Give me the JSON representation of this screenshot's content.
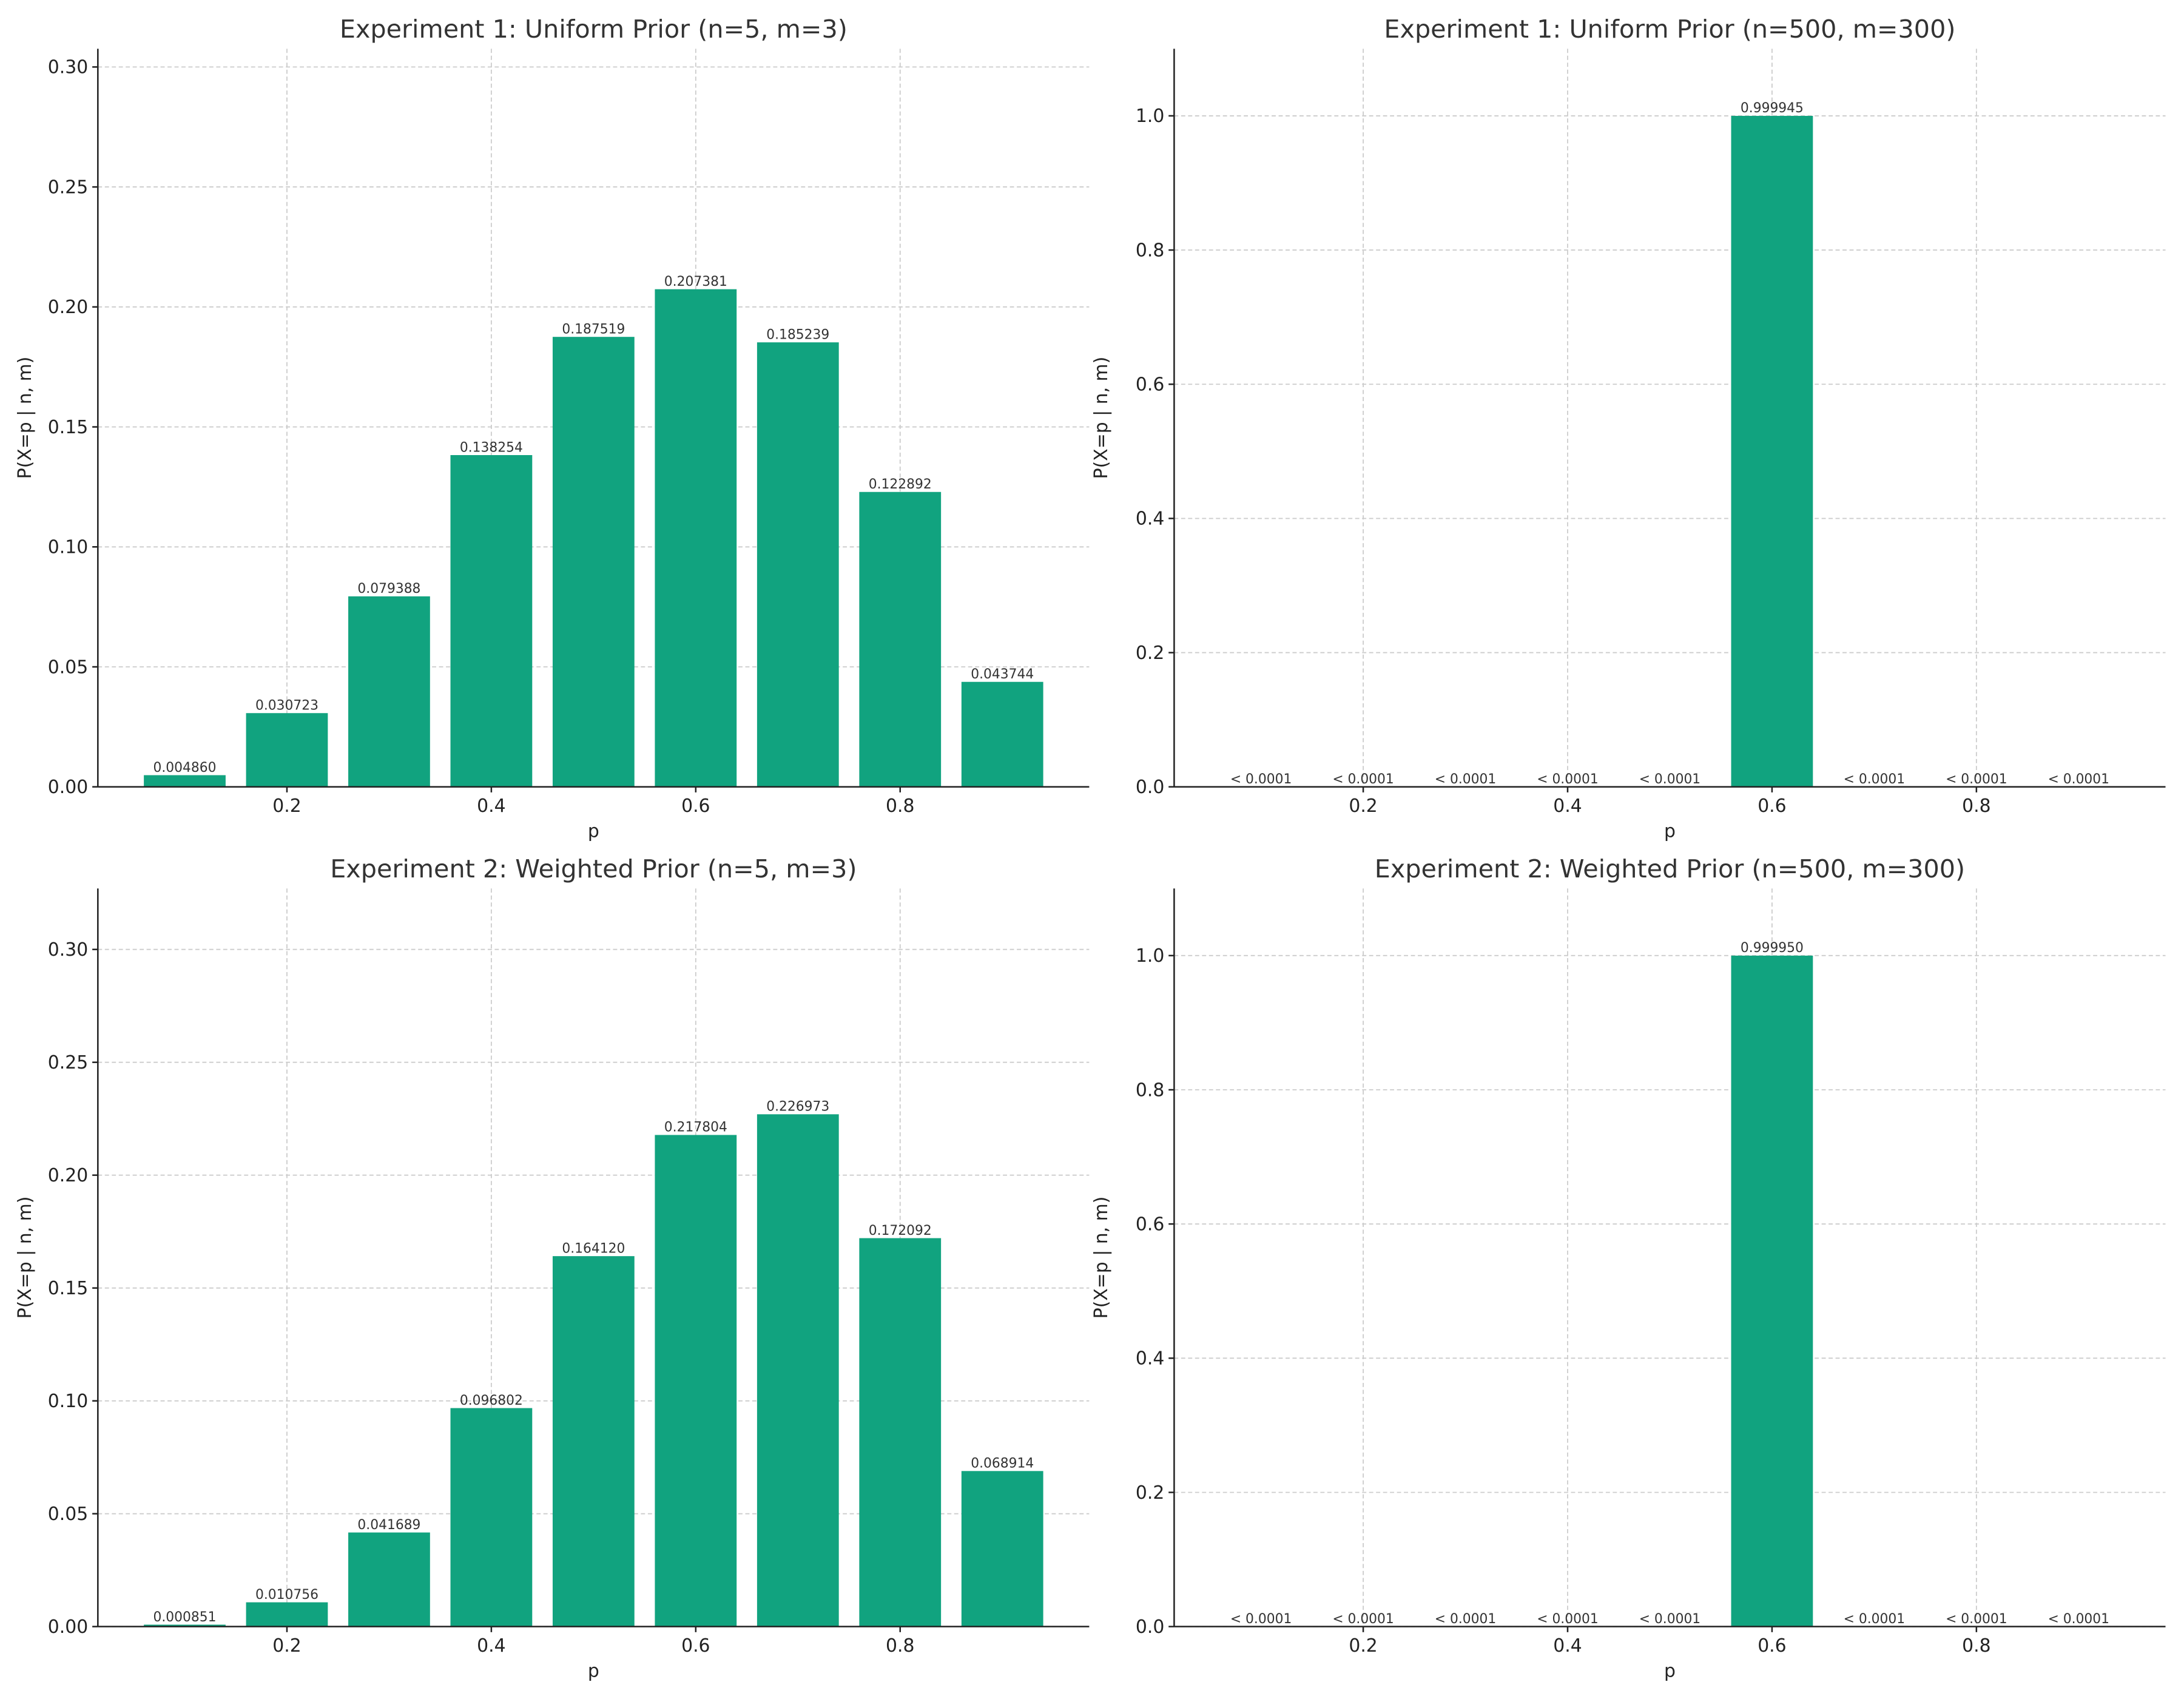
{
  "chart_data": [
    {
      "type": "bar",
      "title": "Experiment 1: Uniform Prior (n=5, m=3)",
      "xlabel": "p",
      "ylabel": "P(X=p | n, m)",
      "x": [
        0.1,
        0.2,
        0.3,
        0.4,
        0.5,
        0.6,
        0.7,
        0.8,
        0.9
      ],
      "values": [
        0.00486,
        0.030723,
        0.079388,
        0.138254,
        0.187519,
        0.207381,
        0.185239,
        0.122892,
        0.043744
      ],
      "bar_labels": [
        "0.004860",
        "0.030723",
        "0.079388",
        "0.138254",
        "0.187519",
        "0.207381",
        "0.185239",
        "0.122892",
        "0.043744"
      ],
      "xlim": [
        0.015,
        0.985
      ],
      "ylim": [
        0,
        0.3076
      ],
      "xticks": [
        "0.2",
        "0.4",
        "0.6",
        "0.8"
      ],
      "yticks": [
        "0.00",
        "0.05",
        "0.10",
        "0.15",
        "0.20",
        "0.25",
        "0.30"
      ],
      "grid": true,
      "color": "#11a37f"
    },
    {
      "type": "bar",
      "title": "Experiment 1: Uniform Prior (n=500, m=300)",
      "xlabel": "p",
      "ylabel": "P(X=p | n, m)",
      "x": [
        0.1,
        0.2,
        0.3,
        0.4,
        0.5,
        0.6,
        0.7,
        0.8,
        0.9
      ],
      "values": [
        0,
        0,
        0,
        0,
        0,
        0.999945,
        0,
        0,
        0
      ],
      "bar_labels": [
        "< 0.0001",
        "< 0.0001",
        "< 0.0001",
        "< 0.0001",
        "< 0.0001",
        "0.999945",
        "< 0.0001",
        "< 0.0001",
        "< 0.0001"
      ],
      "xlim": [
        0.015,
        0.985
      ],
      "ylim": [
        0,
        1.1
      ],
      "xticks": [
        "0.2",
        "0.4",
        "0.6",
        "0.8"
      ],
      "yticks": [
        "0.0",
        "0.2",
        "0.4",
        "0.6",
        "0.8",
        "1.0"
      ],
      "grid": true,
      "color": "#11a37f"
    },
    {
      "type": "bar",
      "title": "Experiment 2: Weighted Prior (n=5, m=3)",
      "xlabel": "p",
      "ylabel": "P(X=p | n, m)",
      "x": [
        0.1,
        0.2,
        0.3,
        0.4,
        0.5,
        0.6,
        0.7,
        0.8,
        0.9
      ],
      "values": [
        0.000851,
        0.010756,
        0.041689,
        0.096802,
        0.16412,
        0.217804,
        0.226973,
        0.172092,
        0.068914
      ],
      "bar_labels": [
        "0.000851",
        "0.010756",
        "0.041689",
        "0.096802",
        "0.164120",
        "0.217804",
        "0.226973",
        "0.172092",
        "0.068914"
      ],
      "xlim": [
        0.015,
        0.985
      ],
      "ylim": [
        0,
        0.327
      ],
      "xticks": [
        "0.2",
        "0.4",
        "0.6",
        "0.8"
      ],
      "yticks": [
        "0.00",
        "0.05",
        "0.10",
        "0.15",
        "0.20",
        "0.25",
        "0.30"
      ],
      "grid": true,
      "color": "#11a37f"
    },
    {
      "type": "bar",
      "title": "Experiment 2: Weighted Prior (n=500, m=300)",
      "xlabel": "p",
      "ylabel": "P(X=p | n, m)",
      "x": [
        0.1,
        0.2,
        0.3,
        0.4,
        0.5,
        0.6,
        0.7,
        0.8,
        0.9
      ],
      "values": [
        0,
        0,
        0,
        0,
        0,
        0.99995,
        0,
        0,
        0
      ],
      "bar_labels": [
        "< 0.0001",
        "< 0.0001",
        "< 0.0001",
        "< 0.0001",
        "< 0.0001",
        "0.999950",
        "< 0.0001",
        "< 0.0001",
        "< 0.0001"
      ],
      "xlim": [
        0.015,
        0.985
      ],
      "ylim": [
        0,
        1.1
      ],
      "xticks": [
        "0.2",
        "0.4",
        "0.6",
        "0.8"
      ],
      "yticks": [
        "0.0",
        "0.2",
        "0.4",
        "0.6",
        "0.8",
        "1.0"
      ],
      "grid": true,
      "color": "#11a37f"
    }
  ]
}
